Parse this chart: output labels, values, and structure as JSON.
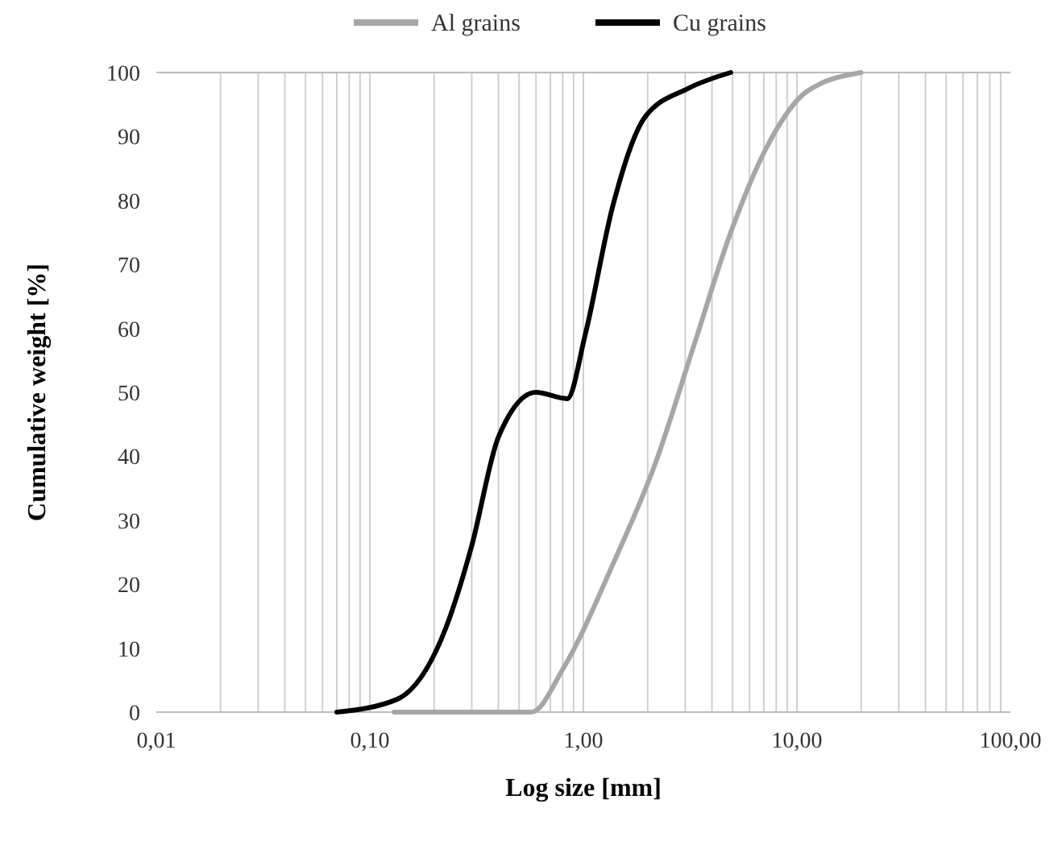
{
  "chart_data": {
    "type": "line",
    "xlabel": "Log size [mm]",
    "ylabel": "Cumulative weight [%]",
    "log": "x",
    "grid": "x",
    "legend": "top",
    "line_style": "solid",
    "marker": "none",
    "xlim": [
      0.01,
      100
    ],
    "xticks": [
      {
        "value": 0.01,
        "label": "0,01"
      },
      {
        "value": 0.1,
        "label": "0,10"
      },
      {
        "value": 1,
        "label": "1,00"
      },
      {
        "value": 10,
        "label": "10,00"
      },
      {
        "value": 100,
        "label": "100,00"
      }
    ],
    "ylim": [
      0,
      100
    ],
    "yticks": [
      0,
      10,
      20,
      30,
      40,
      50,
      60,
      70,
      80,
      90,
      100
    ],
    "series": [
      {
        "name": "Al grains",
        "color": "#a6a6a6",
        "x": [
          0.13,
          0.57,
          0.81,
          1.37,
          2.18,
          3.27,
          4.9,
          7.4,
          11.1,
          20
        ],
        "values": [
          0,
          0,
          7,
          23,
          39,
          57,
          75,
          89,
          97,
          100
        ]
      },
      {
        "name": "Cu grains",
        "color": "#000000",
        "x": [
          0.07,
          0.134,
          0.226,
          0.3,
          0.4,
          0.6,
          0.84,
          1.02,
          1.37,
          1.94,
          3.09,
          4.9
        ],
        "values": [
          0,
          2,
          13,
          26,
          43,
          50,
          49,
          59,
          79,
          93,
          97.5,
          100
        ]
      }
    ]
  }
}
